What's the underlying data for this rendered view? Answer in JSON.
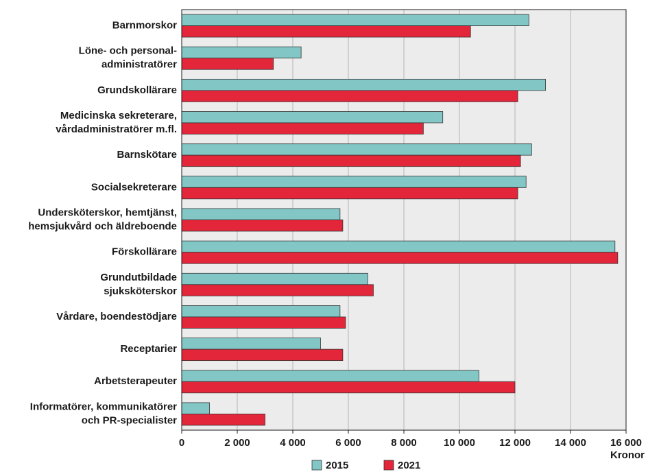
{
  "chart_data": {
    "type": "hbar",
    "categories": [
      "Barnmorskor",
      "Löne- och personal-\nadministratörer",
      "Grundskollärare",
      "Medicinska sekreterare,\nvårdadministratörer m.fl.",
      "Barnskötare",
      "Socialsekreterare",
      "Undersköterskor, hemtjänst,\nhemsjukvård och äldreboende",
      "Förskollärare",
      "Grundutbildade\nsjuksköterskor",
      "Vårdare, boendestödjare",
      "Receptarier",
      "Arbetsterapeuter",
      "Informatörer, kommunikatörer\noch PR-specialister"
    ],
    "series": [
      {
        "name": "2015",
        "color": "#82c6c6",
        "values": [
          12500,
          4300,
          13100,
          9400,
          12600,
          12400,
          5700,
          15600,
          6700,
          5700,
          5000,
          10700,
          1000
        ]
      },
      {
        "name": "2021",
        "color": "#e3263a",
        "values": [
          10400,
          3300,
          12100,
          8700,
          12200,
          12100,
          5800,
          15700,
          6900,
          5900,
          5800,
          12000,
          3000
        ]
      }
    ],
    "xlabel": "Kronor",
    "xlim": [
      0,
      16000
    ],
    "xticks": [
      0,
      {
        "value": 2000,
        "label": "2 000"
      },
      {
        "value": 4000,
        "label": "4 000"
      },
      {
        "value": 6000,
        "label": "6 000"
      },
      {
        "value": 8000,
        "label": "8 000"
      },
      {
        "value": 10000,
        "label": "10 000"
      },
      {
        "value": 12000,
        "label": "12 000"
      },
      {
        "value": 14000,
        "label": "14 000"
      },
      {
        "value": 16000,
        "label": "16 000"
      }
    ],
    "grid": true,
    "legend": "bottom"
  }
}
